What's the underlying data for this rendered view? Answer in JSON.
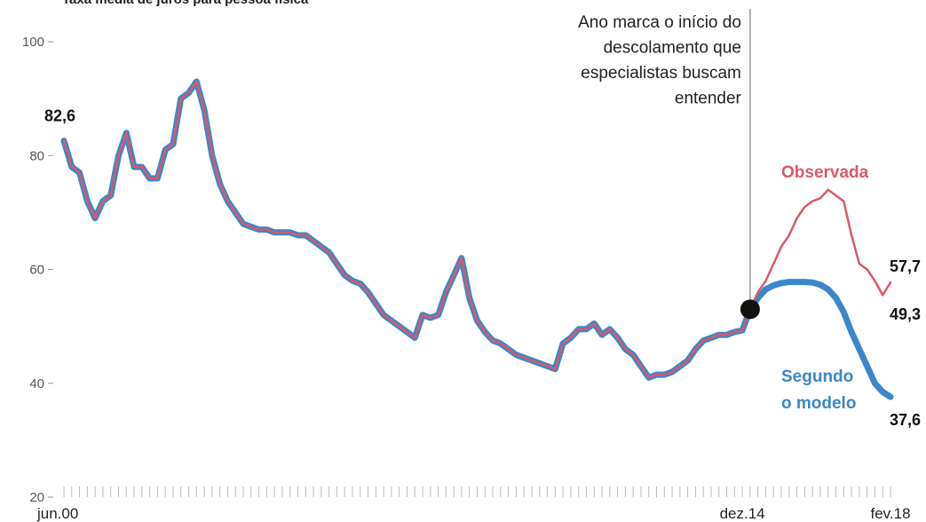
{
  "chart_data": {
    "type": "line",
    "title": "Taxa média de juros para pessoa física",
    "annotation": [
      "Ano marca o início do",
      "descolamento que",
      "especialistas buscam",
      "entender"
    ],
    "categories": [
      "jun.00",
      null,
      null,
      null,
      null,
      null,
      null,
      null,
      null,
      null,
      null,
      null,
      null,
      null,
      null,
      null,
      null,
      null,
      null,
      null,
      null,
      null,
      null,
      null,
      null,
      null,
      null,
      null,
      null,
      null,
      null,
      null,
      null,
      null,
      null,
      null,
      null,
      null,
      null,
      null,
      null,
      null,
      null,
      null,
      null,
      null,
      null,
      null,
      null,
      null,
      null,
      null,
      null,
      null,
      null,
      null,
      null,
      null,
      null,
      null,
      null,
      null,
      null,
      null,
      null,
      null,
      null,
      null,
      null,
      null,
      null,
      null,
      null,
      null,
      null,
      null,
      null,
      null,
      null,
      null,
      null,
      null,
      null,
      null,
      null,
      null,
      null,
      "dez.14",
      null,
      null,
      null,
      null,
      null,
      null,
      null,
      null,
      null,
      null,
      null,
      null,
      null,
      null,
      null,
      null,
      null,
      null,
      "fev.18"
    ],
    "series": [
      {
        "name": "Segundo o modelo",
        "color": "#3a87c9",
        "values": [
          82.6,
          78,
          77,
          72,
          69,
          72,
          73,
          80,
          84,
          78,
          78,
          76,
          76,
          81,
          82,
          90,
          91,
          93,
          88,
          80,
          75,
          72,
          70,
          68,
          67.5,
          67,
          67,
          66.5,
          66.5,
          66.5,
          66,
          66,
          65,
          64,
          63,
          61,
          59,
          58,
          57.5,
          56,
          54,
          52,
          51,
          50,
          49,
          48,
          52,
          51.5,
          52,
          56,
          59,
          62,
          55,
          51,
          49,
          47.5,
          47,
          46,
          45,
          44.5,
          44,
          43.5,
          43,
          42.5,
          47,
          48,
          49.5,
          49.5,
          50.5,
          48.5,
          49.5,
          48,
          46,
          45,
          43,
          41,
          41.5,
          41.5,
          42,
          43,
          44,
          46,
          47.5,
          48,
          48.5,
          48.5,
          49,
          49.3,
          53,
          55,
          56.5,
          57.2,
          57.6,
          57.8,
          57.8,
          57.8,
          57.7,
          57.3,
          56.5,
          55,
          52.5,
          49,
          46,
          43,
          40,
          38.5,
          37.6
        ],
        "value_labels": [
          null,
          null,
          null,
          null,
          null,
          null,
          null,
          null,
          null,
          null,
          null,
          null,
          null,
          null,
          null,
          null,
          null,
          null,
          null,
          null,
          null,
          null,
          null,
          null,
          null,
          null,
          null,
          null,
          null,
          null,
          null,
          null,
          null,
          null,
          null,
          null,
          null,
          null,
          null,
          null,
          null,
          null,
          null,
          null,
          null,
          null,
          null,
          null,
          null,
          null,
          null,
          null,
          null,
          null,
          null,
          null,
          null,
          null,
          null,
          null,
          null,
          null,
          null,
          null,
          null,
          null,
          null,
          null,
          null,
          null,
          null,
          null,
          null,
          null,
          null,
          null,
          null,
          null,
          null,
          null,
          null,
          null,
          null,
          null,
          null,
          null,
          null,
          null,
          null,
          null,
          null,
          null,
          null,
          null,
          null,
          null,
          null,
          null,
          null,
          null,
          null,
          null,
          null,
          null,
          null,
          null,
          "37,6"
        ]
      },
      {
        "name": "Observada",
        "color": "#d9596a",
        "values": [
          82.6,
          78,
          77,
          72,
          69,
          72,
          73,
          80,
          84,
          78,
          78,
          76,
          76,
          81,
          82,
          90,
          91,
          93,
          88,
          80,
          75,
          72,
          70,
          68,
          67.5,
          67,
          67,
          66.5,
          66.5,
          66.5,
          66,
          66,
          65,
          64,
          63,
          61,
          59,
          58,
          57.5,
          56,
          54,
          52,
          51,
          50,
          49,
          48,
          52,
          51.5,
          52,
          56,
          59,
          62,
          55,
          51,
          49,
          47.5,
          47,
          46,
          45,
          44.5,
          44,
          43.5,
          43,
          42.5,
          47,
          48,
          49.5,
          49.5,
          50.5,
          48.5,
          49.5,
          48,
          46,
          45,
          43,
          41,
          41.5,
          41.5,
          42,
          43,
          44,
          46,
          47.5,
          48,
          48.5,
          48.5,
          49,
          49.3,
          53,
          56,
          58,
          61,
          64,
          66,
          69,
          71,
          72,
          72.5,
          74,
          73,
          72,
          66,
          61,
          60,
          58,
          55.5,
          57.7
        ],
        "value_labels": [
          "82,6",
          null,
          null,
          null,
          null,
          null,
          null,
          null,
          null,
          null,
          null,
          null,
          null,
          null,
          null,
          null,
          null,
          null,
          null,
          null,
          null,
          null,
          null,
          null,
          null,
          null,
          null,
          null,
          null,
          null,
          null,
          null,
          null,
          null,
          null,
          null,
          null,
          null,
          null,
          null,
          null,
          null,
          null,
          null,
          null,
          null,
          null,
          null,
          null,
          null,
          null,
          null,
          null,
          null,
          null,
          null,
          null,
          null,
          null,
          null,
          null,
          null,
          null,
          null,
          null,
          null,
          null,
          null,
          null,
          null,
          null,
          null,
          null,
          null,
          null,
          null,
          null,
          null,
          null,
          null,
          null,
          null,
          null,
          null,
          null,
          null,
          null,
          "49,3",
          null,
          null,
          null,
          null,
          null,
          null,
          null,
          null,
          null,
          null,
          null,
          null,
          null,
          null,
          null,
          null,
          null,
          null,
          "57,7"
        ]
      }
    ],
    "ylim": [
      20,
      100
    ],
    "yticks": [
      20,
      40,
      60,
      80,
      100
    ],
    "grid": false
  }
}
